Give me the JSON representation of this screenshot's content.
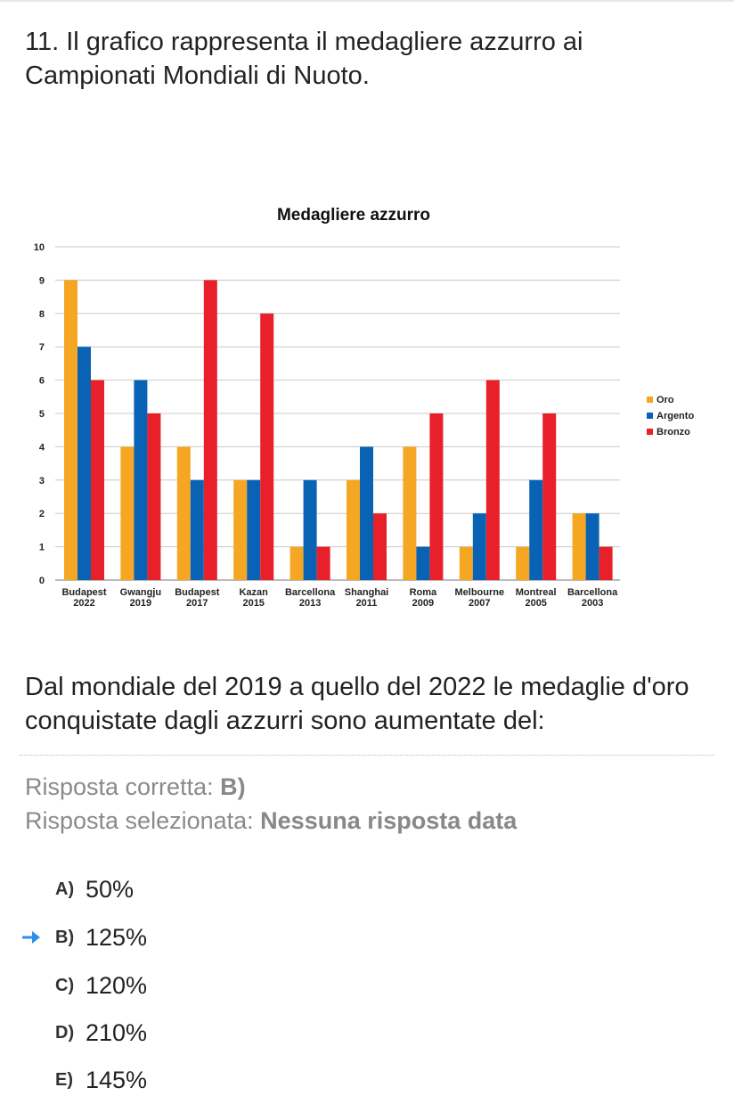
{
  "question": {
    "title": "11. Il grafico rappresenta il medagliere azzurro ai Campionati Mondiali di Nuoto.",
    "text": "Dal mondiale del 2019 a quello del 2022 le medaglie d'oro conquistate dagli azzurri sono aumentate del:"
  },
  "answer": {
    "correct_label": "Risposta corretta:",
    "correct_value": "B)",
    "selected_label": "Risposta selezionata:",
    "selected_value": "Nessuna risposta data"
  },
  "options": [
    {
      "letter": "A)",
      "text": "50%",
      "correct": false
    },
    {
      "letter": "B)",
      "text": "125%",
      "correct": true
    },
    {
      "letter": "C)",
      "text": "120%",
      "correct": false
    },
    {
      "letter": "D)",
      "text": "210%",
      "correct": false
    },
    {
      "letter": "E)",
      "text": "145%",
      "correct": false
    }
  ],
  "colors": {
    "oro": "#f5a623",
    "argento": "#0a62b4",
    "bronzo": "#e8202a",
    "arrow": "#2f8fe8"
  },
  "chart_data": {
    "type": "bar",
    "title": "Medagliere azzurro",
    "xlabel": "",
    "ylabel": "",
    "ylim": [
      0,
      10
    ],
    "yticks": [
      0,
      1,
      2,
      3,
      4,
      5,
      6,
      7,
      8,
      9,
      10
    ],
    "grid": true,
    "legend": "right",
    "categories": [
      [
        "Budapest",
        "2022"
      ],
      [
        "Gwangju",
        "2019"
      ],
      [
        "Budapest",
        "2017"
      ],
      [
        "Kazan",
        "2015"
      ],
      [
        "Barcellona",
        "2013"
      ],
      [
        "Shanghai",
        "2011"
      ],
      [
        "Roma",
        "2009"
      ],
      [
        "Melbourne",
        "2007"
      ],
      [
        "Montreal",
        "2005"
      ],
      [
        "Barcellona",
        "2003"
      ]
    ],
    "series": [
      {
        "name": "Oro",
        "color": "#f5a623",
        "values": [
          9,
          4,
          4,
          3,
          1,
          3,
          4,
          1,
          1,
          2
        ]
      },
      {
        "name": "Argento",
        "color": "#0a62b4",
        "values": [
          7,
          6,
          3,
          3,
          3,
          4,
          1,
          2,
          3,
          2
        ]
      },
      {
        "name": "Bronzo",
        "color": "#e8202a",
        "values": [
          6,
          5,
          9,
          8,
          1,
          2,
          5,
          6,
          5,
          1
        ]
      }
    ]
  }
}
